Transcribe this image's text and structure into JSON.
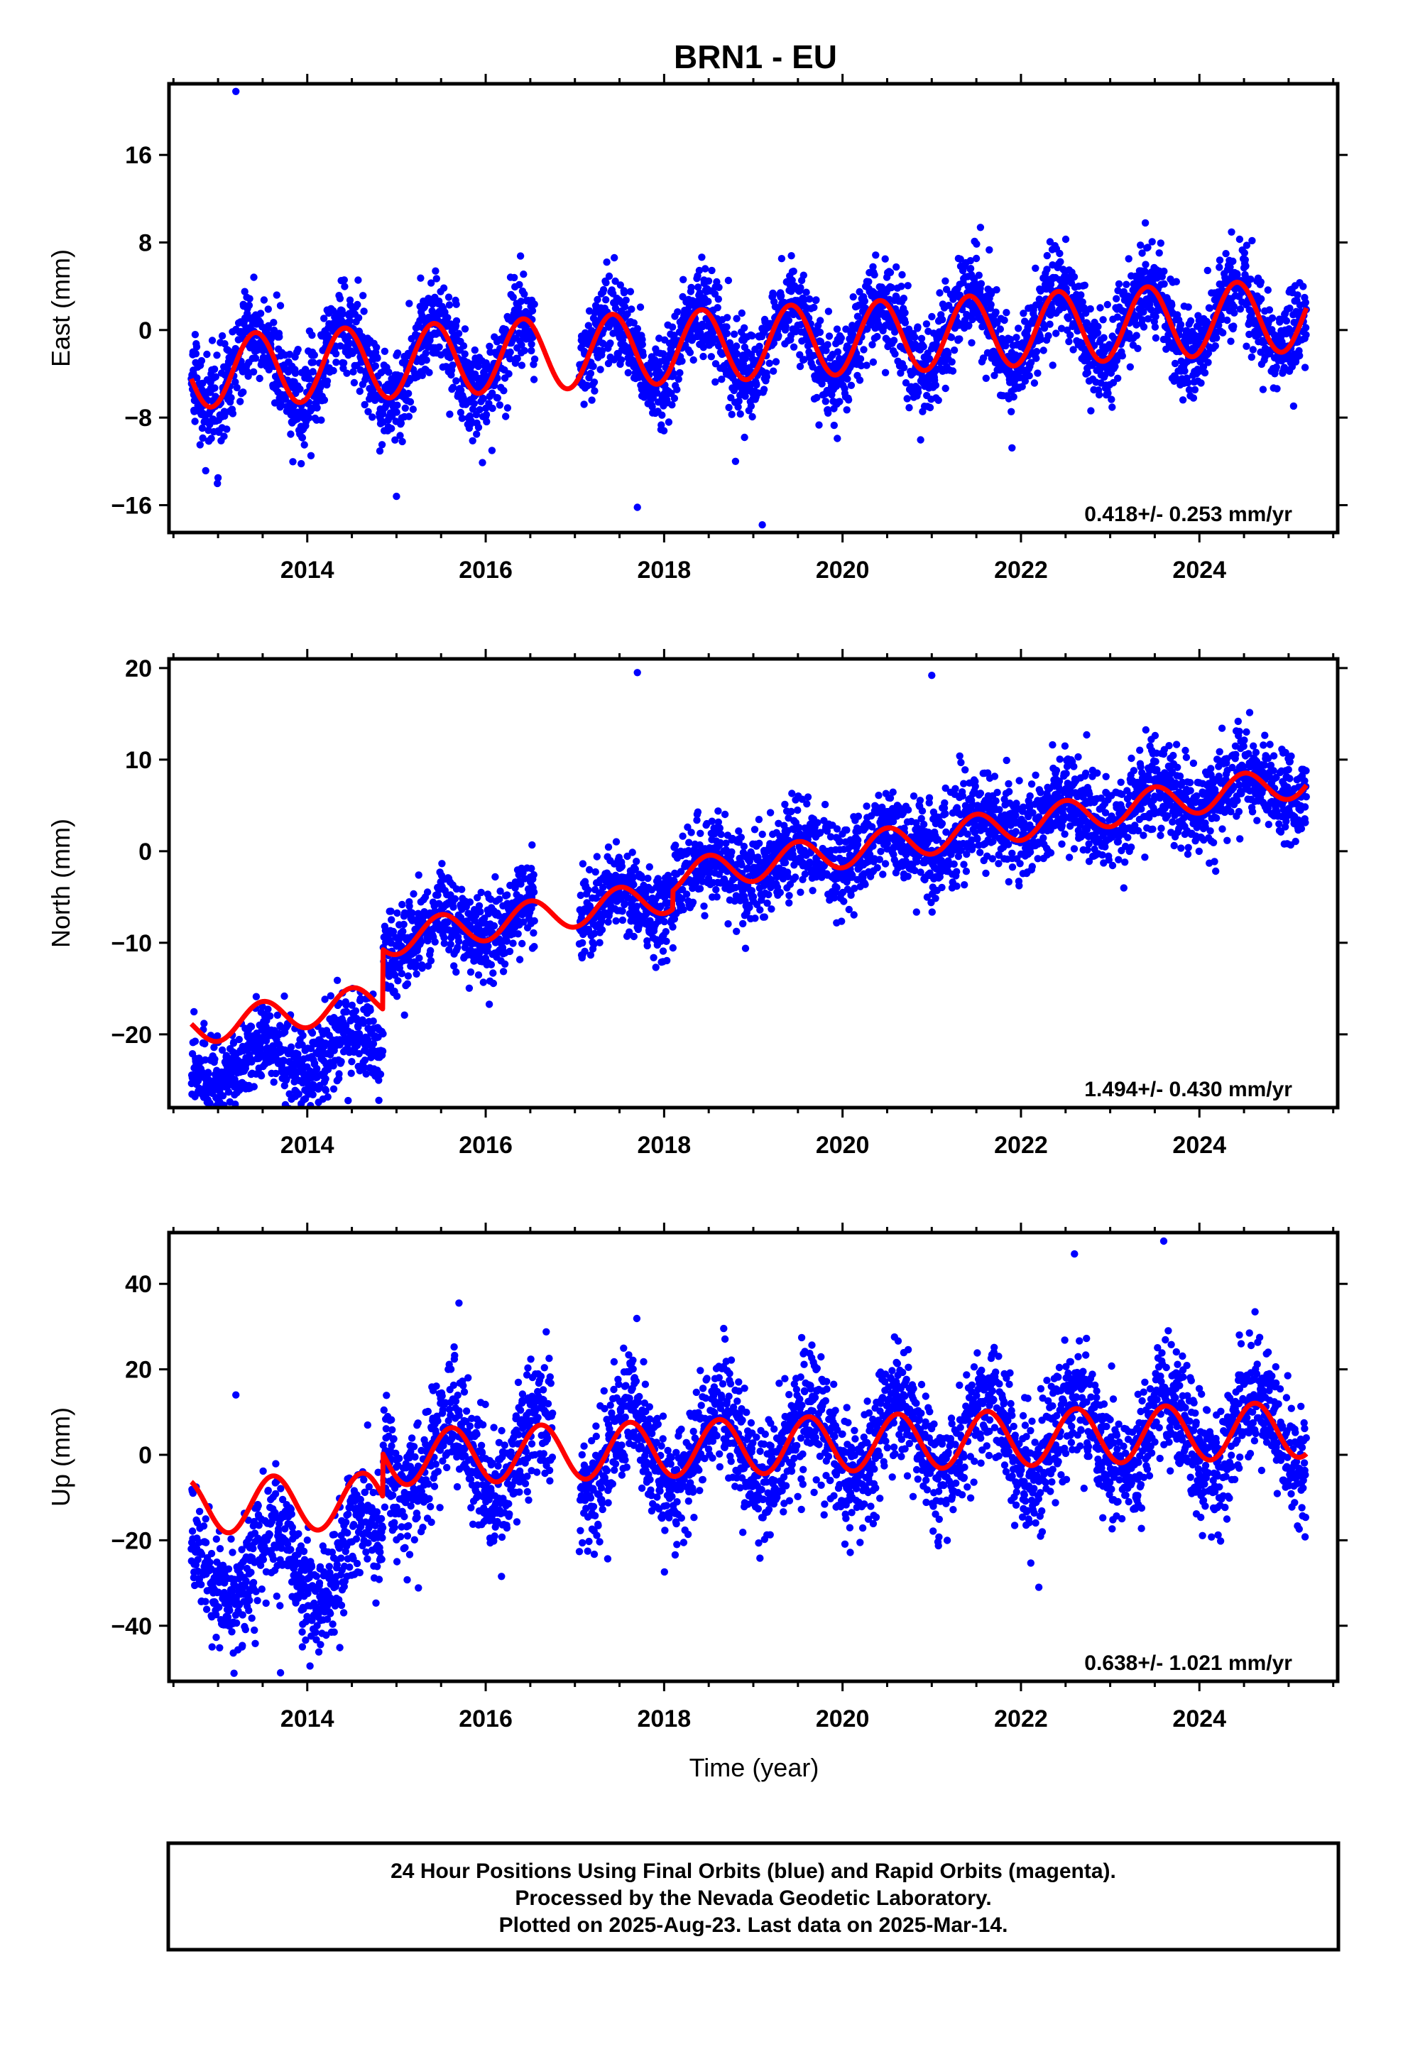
{
  "title": "BRN1 - EU",
  "footer": {
    "line1": "24 Hour Positions Using Final Orbits (blue) and Rapid Orbits (magenta).",
    "line2": "Processed by the Nevada Geodetic Laboratory.",
    "line3": "Plotted on 2025-Aug-23. Last data on 2025-Mar-14."
  },
  "colors": {
    "points": "#0000ff",
    "model": "#ff0000",
    "frame": "#000000"
  },
  "chart_data": [
    {
      "type": "scatter",
      "ylabel": "East (mm)",
      "xlabel": "",
      "xlim": [
        2012.45,
        2025.55
      ],
      "ylim": [
        -18.5,
        22.5
      ],
      "yticks": [
        -16,
        -8,
        0,
        8,
        16
      ],
      "xticks": [
        2014,
        2016,
        2018,
        2020,
        2022,
        2024
      ],
      "rate_text": "0.418+/- 0.253 mm/yr",
      "legend": "none",
      "grid": false,
      "series": [
        {
          "kind": "points",
          "color": "#0000ff",
          "model": {
            "t0": 2012.7,
            "t1": 2025.2,
            "ref": 2019.0,
            "offset": -1.2,
            "rate": 0.418,
            "amp": 3.3,
            "peak": 0.42,
            "noise": 2.1,
            "gaps": [
              [
                2016.55,
                2017.05
              ]
            ],
            "outliers": [
              [
                2013.2,
                21.8
              ],
              [
                2017.7,
                -16.2
              ],
              [
                2019.1,
                -17.8
              ],
              [
                2015.0,
                -15.2
              ],
              [
                2018.8,
                -12.0
              ],
              [
                2013.0,
                -13.5
              ]
            ]
          }
        },
        {
          "kind": "line",
          "color": "#ff0000",
          "model": {
            "t0": 2012.7,
            "t1": 2025.2,
            "ref": 2019.0,
            "offset": -1.2,
            "rate": 0.418,
            "amp": 3.3,
            "peak": 0.42
          }
        }
      ]
    },
    {
      "type": "scatter",
      "ylabel": "North (mm)",
      "xlabel": "",
      "xlim": [
        2012.45,
        2025.55
      ],
      "ylim": [
        -28,
        21
      ],
      "yticks": [
        -20,
        -10,
        0,
        10,
        20
      ],
      "xticks": [
        2014,
        2016,
        2018,
        2020,
        2022,
        2024
      ],
      "rate_text": "1.494+/- 0.430 mm/yr",
      "legend": "none",
      "grid": false,
      "series": [
        {
          "kind": "points",
          "color": "#0000ff",
          "model": {
            "t0": 2012.7,
            "t1": 2025.2,
            "ref": 2019.0,
            "offset": -1.5,
            "rate": 1.494,
            "amp": 1.8,
            "peak": 0.5,
            "noise": 2.4,
            "gaps": [
              [
                2016.55,
                2017.05
              ]
            ],
            "steps": [
              [
                2014.85,
                6.5
              ],
              [
                2018.1,
                2.0
              ]
            ],
            "pre_shift": [
              2012.7,
              2014.85,
              -4.5
            ],
            "outliers": [
              [
                2017.7,
                19.5
              ],
              [
                2021.0,
                19.2
              ],
              [
                2013.3,
                -25.5
              ],
              [
                2013.8,
                -26.5
              ],
              [
                2014.2,
                -26.0
              ]
            ]
          }
        },
        {
          "kind": "line",
          "color": "#ff0000",
          "model": {
            "t0": 2012.7,
            "t1": 2025.2,
            "ref": 2019.0,
            "offset": -1.5,
            "rate": 1.494,
            "amp": 1.8,
            "peak": 0.5,
            "steps": [
              [
                2014.85,
                6.5
              ],
              [
                2018.1,
                2.0
              ]
            ]
          }
        }
      ]
    },
    {
      "type": "scatter",
      "ylabel": "Up (mm)",
      "xlabel": "Time (year)",
      "xlim": [
        2012.45,
        2025.55
      ],
      "ylim": [
        -53,
        52
      ],
      "yticks": [
        -40,
        -20,
        0,
        20,
        40
      ],
      "xticks": [
        2014,
        2016,
        2018,
        2020,
        2022,
        2024
      ],
      "rate_text": "0.638+/- 1.021 mm/yr",
      "legend": "none",
      "grid": false,
      "series": [
        {
          "kind": "points",
          "color": "#0000ff",
          "model": {
            "t0": 2012.7,
            "t1": 2025.2,
            "ref": 2019.0,
            "offset": 2.0,
            "rate": 0.638,
            "amp": 9.5,
            "peak": 0.62,
            "noise": 7.0,
            "gaps": [
              [
                2016.75,
                2017.05
              ]
            ],
            "steps": [
              [
                2014.85,
                10.0
              ]
            ],
            "pre_shift": [
              2012.7,
              2014.85,
              -14.0
            ],
            "outliers": [
              [
                2013.7,
                -51.0
              ],
              [
                2023.6,
                50.0
              ],
              [
                2022.6,
                47.0
              ],
              [
                2022.2,
                -31.0
              ],
              [
                2015.7,
                35.5
              ],
              [
                2013.2,
                14.0
              ]
            ]
          }
        },
        {
          "kind": "line",
          "color": "#ff0000",
          "model": {
            "t0": 2012.7,
            "t1": 2025.2,
            "ref": 2019.0,
            "offset": 2.0,
            "rate": 0.638,
            "amp": 6.5,
            "peak": 0.62,
            "steps": [
              [
                2014.85,
                10.0
              ]
            ]
          }
        }
      ]
    }
  ]
}
